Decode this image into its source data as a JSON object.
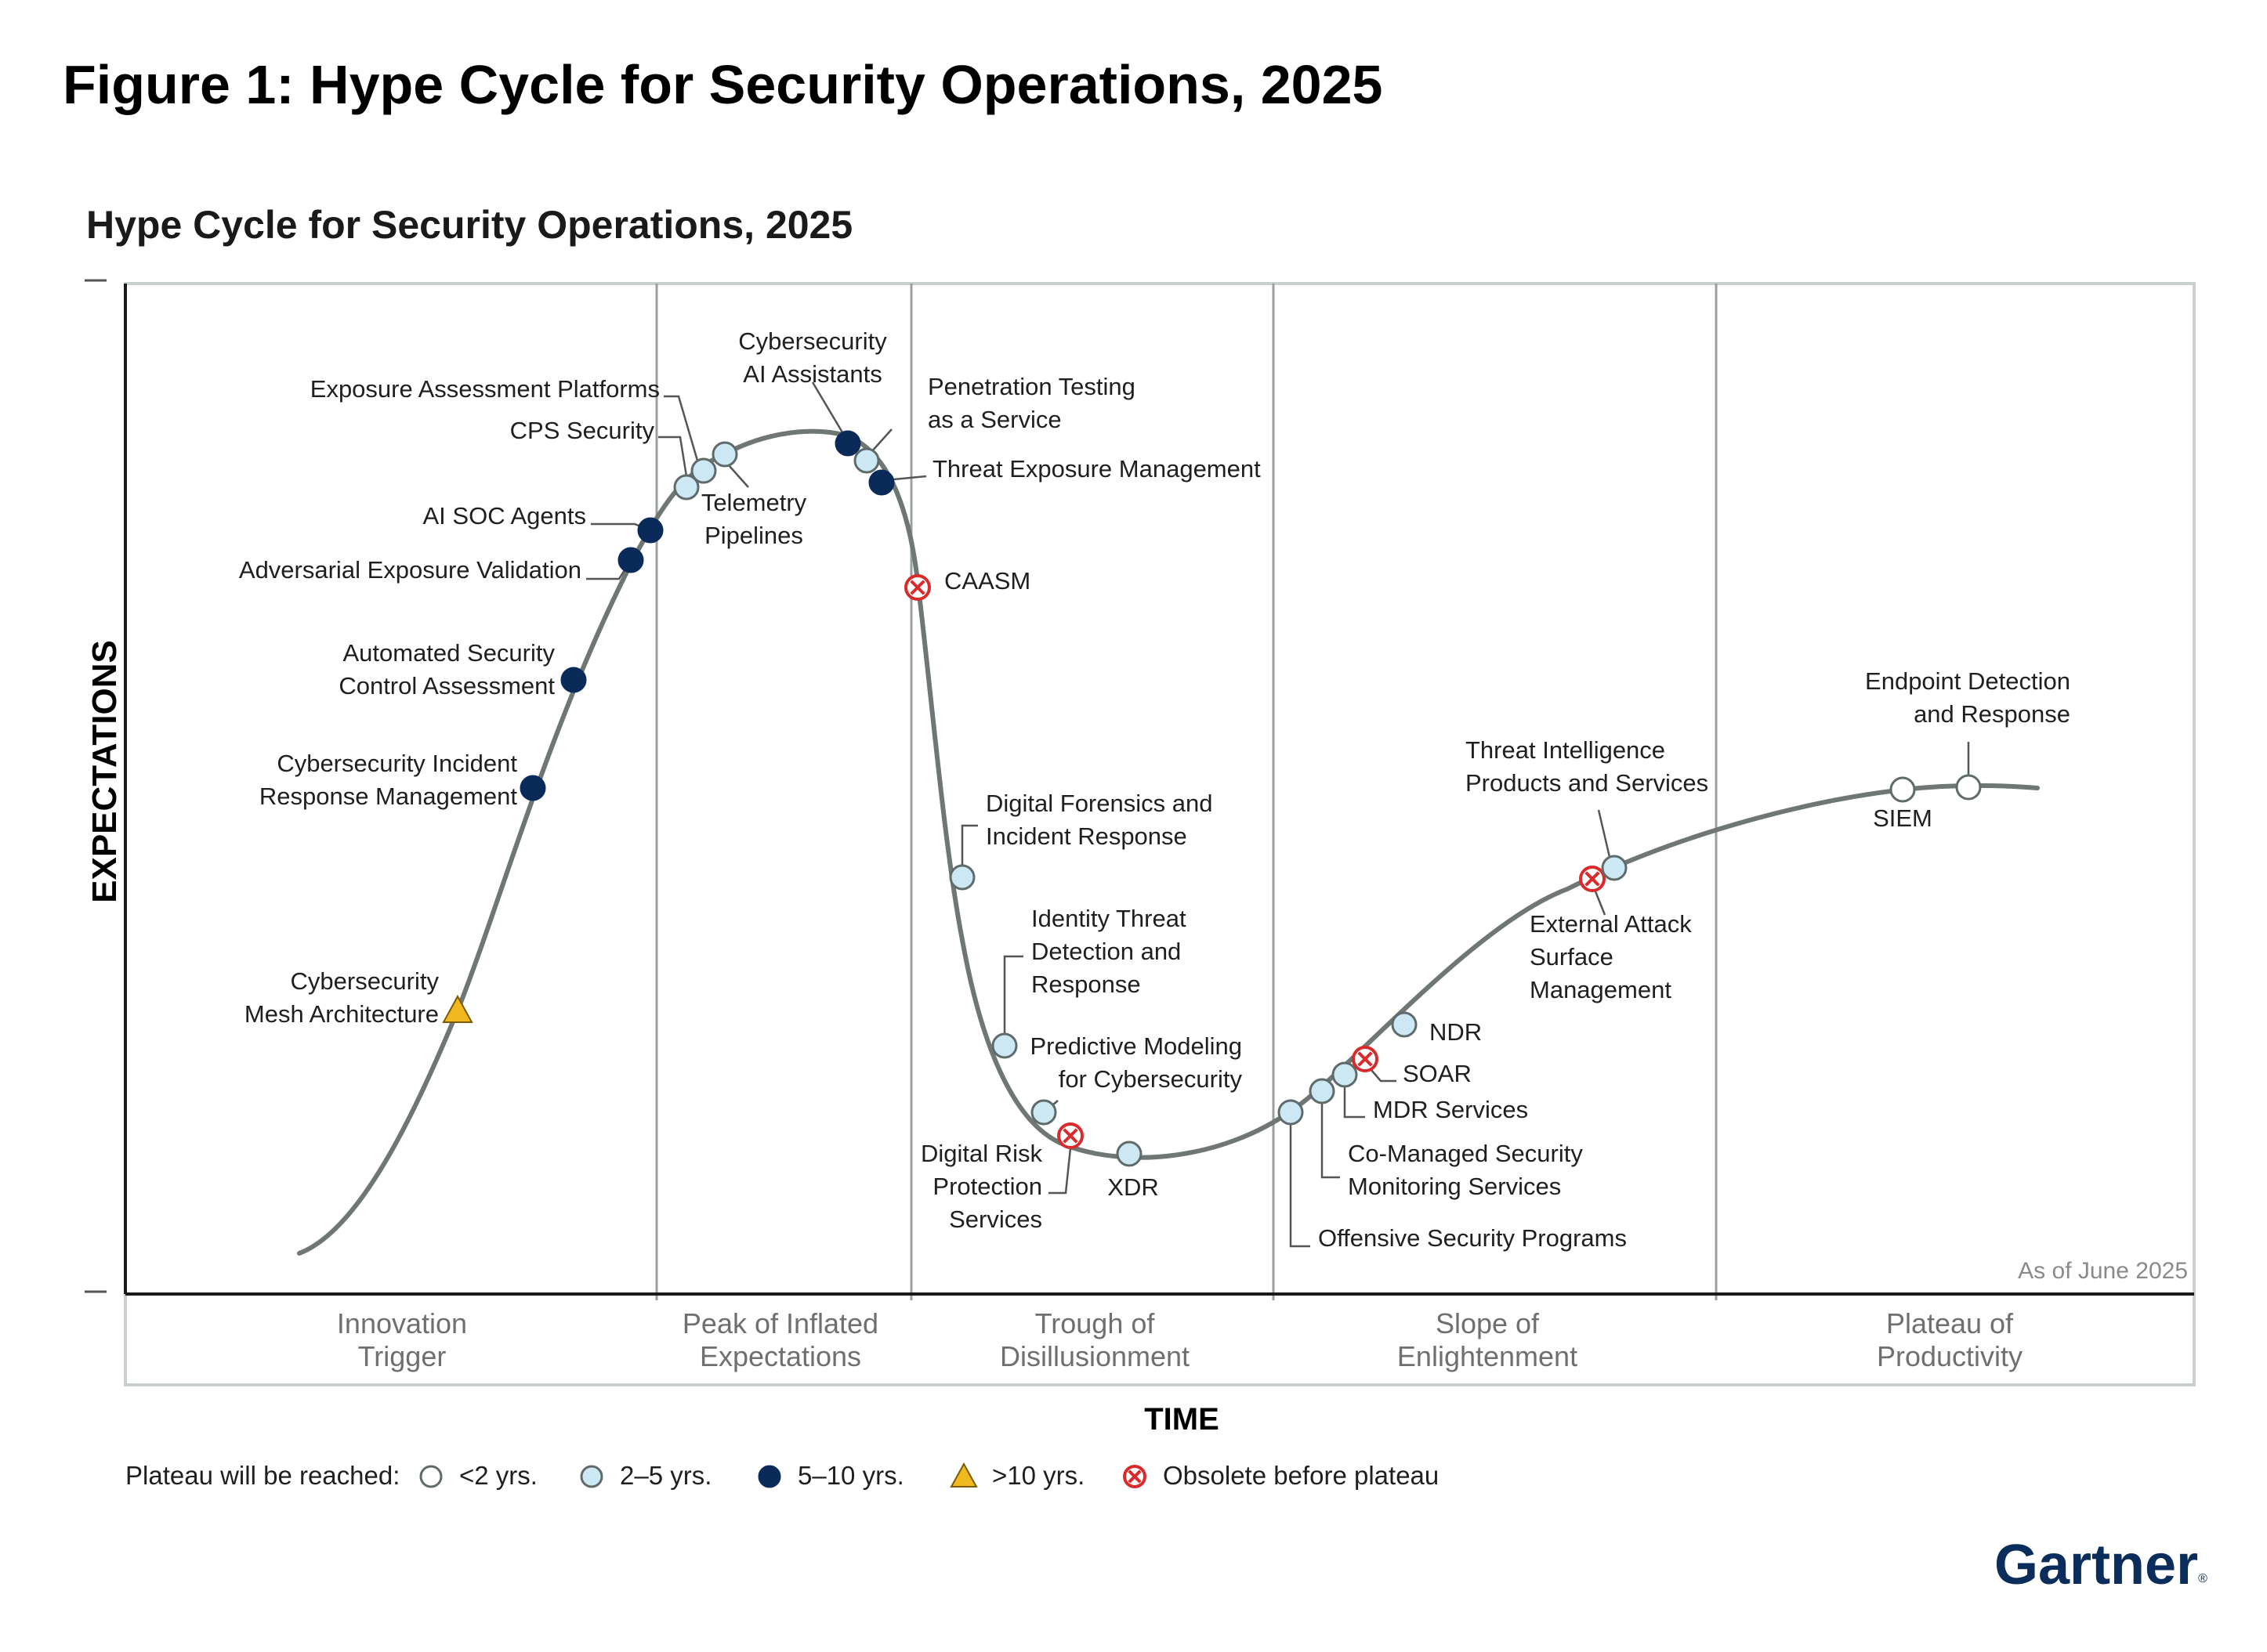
{
  "figure_title": "Figure 1: Hype Cycle for Security Operations, 2025",
  "chart_title": "Hype Cycle for Security Operations, 2025",
  "y_axis_label": "EXPECTATIONS",
  "x_axis_label": "TIME",
  "as_of": "As of June 2025",
  "brand": "Gartner",
  "brand_mark": "®",
  "phases": [
    {
      "lines": [
        "Innovation",
        "Trigger"
      ]
    },
    {
      "lines": [
        "Peak of Inflated",
        "Expectations"
      ]
    },
    {
      "lines": [
        "Trough of",
        "Disillusionment"
      ]
    },
    {
      "lines": [
        "Slope of",
        "Enlightenment"
      ]
    },
    {
      "lines": [
        "Plateau of",
        "Productivity"
      ]
    }
  ],
  "legend": {
    "title": "Plateau will be reached:",
    "items": [
      {
        "type": "lt2",
        "label": "<2 yrs."
      },
      {
        "type": "2to5",
        "label": "2–5 yrs."
      },
      {
        "type": "5to10",
        "label": "5–10 yrs."
      },
      {
        "type": "gt10",
        "label": ">10 yrs."
      },
      {
        "type": "obsolete",
        "label": "Obsolete before plateau"
      }
    ]
  },
  "colors": {
    "lt2": "#ffffff",
    "2to5": "#cde8f5",
    "5to10": "#0a2a5a",
    "gt10": "#f2b820",
    "obsolete": "#d92b2b",
    "curve": "#6f7775",
    "frame": "#c9cfcf",
    "brand": "#0a2d5c"
  },
  "chart_data": {
    "type": "hype-cycle",
    "title": "Hype Cycle for Security Operations, 2025",
    "x_label": "TIME",
    "y_label": "EXPECTATIONS",
    "technologies": [
      {
        "name": "Cybersecurity Mesh Architecture",
        "label_lines": [
          "Cybersecurity",
          "Mesh Architecture"
        ],
        "phase": "Innovation Trigger",
        "plateau": "gt10"
      },
      {
        "name": "Cybersecurity Incident Response Management",
        "label_lines": [
          "Cybersecurity Incident",
          "Response Management"
        ],
        "phase": "Innovation Trigger",
        "plateau": "5to10"
      },
      {
        "name": "Automated Security Control Assessment",
        "label_lines": [
          "Automated Security",
          "Control Assessment"
        ],
        "phase": "Innovation Trigger",
        "plateau": "5to10"
      },
      {
        "name": "Adversarial Exposure Validation",
        "label_lines": [
          "Adversarial Exposure Validation"
        ],
        "phase": "Innovation Trigger",
        "plateau": "5to10"
      },
      {
        "name": "AI SOC Agents",
        "label_lines": [
          "AI SOC Agents"
        ],
        "phase": "Innovation Trigger",
        "plateau": "5to10"
      },
      {
        "name": "CPS Security",
        "label_lines": [
          "CPS Security"
        ],
        "phase": "Peak of Inflated Expectations",
        "plateau": "2to5"
      },
      {
        "name": "Exposure Assessment Platforms",
        "label_lines": [
          "Exposure Assessment Platforms"
        ],
        "phase": "Peak of Inflated Expectations",
        "plateau": "2to5"
      },
      {
        "name": "Telemetry Pipelines",
        "label_lines": [
          "Telemetry",
          "Pipelines"
        ],
        "phase": "Peak of Inflated Expectations",
        "plateau": "2to5"
      },
      {
        "name": "Cybersecurity AI Assistants",
        "label_lines": [
          "Cybersecurity",
          "AI Assistants"
        ],
        "phase": "Peak of Inflated Expectations",
        "plateau": "5to10"
      },
      {
        "name": "Penetration Testing as a Service",
        "label_lines": [
          "Penetration Testing",
          "as a Service"
        ],
        "phase": "Peak of Inflated Expectations",
        "plateau": "2to5"
      },
      {
        "name": "Threat Exposure Management",
        "label_lines": [
          "Threat Exposure Management"
        ],
        "phase": "Peak of Inflated Expectations",
        "plateau": "5to10"
      },
      {
        "name": "CAASM",
        "label_lines": [
          "CAASM"
        ],
        "phase": "Trough of Disillusionment",
        "plateau": "obsolete"
      },
      {
        "name": "Digital Forensics and Incident Response",
        "label_lines": [
          "Digital Forensics and",
          "Incident Response"
        ],
        "phase": "Trough of Disillusionment",
        "plateau": "2to5"
      },
      {
        "name": "Identity Threat Detection and Response",
        "label_lines": [
          "Identity Threat",
          "Detection and",
          "Response"
        ],
        "phase": "Trough of Disillusionment",
        "plateau": "2to5"
      },
      {
        "name": "Predictive Modeling for Cybersecurity",
        "label_lines": [
          "Predictive Modeling",
          "for Cybersecurity"
        ],
        "phase": "Trough of Disillusionment",
        "plateau": "2to5"
      },
      {
        "name": "Digital Risk Protection Services",
        "label_lines": [
          "Digital Risk",
          "Protection",
          "Services"
        ],
        "phase": "Trough of Disillusionment",
        "plateau": "obsolete"
      },
      {
        "name": "XDR",
        "label_lines": [
          "XDR"
        ],
        "phase": "Trough of Disillusionment",
        "plateau": "2to5"
      },
      {
        "name": "Offensive Security Programs",
        "label_lines": [
          "Offensive Security Programs"
        ],
        "phase": "Slope of Enlightenment",
        "plateau": "2to5"
      },
      {
        "name": "Co-Managed Security Monitoring Services",
        "label_lines": [
          "Co-Managed Security",
          "Monitoring Services"
        ],
        "phase": "Slope of Enlightenment",
        "plateau": "2to5"
      },
      {
        "name": "MDR Services",
        "label_lines": [
          "MDR Services"
        ],
        "phase": "Slope of Enlightenment",
        "plateau": "2to5"
      },
      {
        "name": "SOAR",
        "label_lines": [
          "SOAR"
        ],
        "phase": "Slope of Enlightenment",
        "plateau": "obsolete"
      },
      {
        "name": "NDR",
        "label_lines": [
          "NDR"
        ],
        "phase": "Slope of Enlightenment",
        "plateau": "2to5"
      },
      {
        "name": "External Attack Surface Management",
        "label_lines": [
          "External Attack",
          "Surface",
          "Management"
        ],
        "phase": "Slope of Enlightenment",
        "plateau": "obsolete"
      },
      {
        "name": "Threat Intelligence Products and Services",
        "label_lines": [
          "Threat Intelligence",
          "Products and Services"
        ],
        "phase": "Slope of Enlightenment",
        "plateau": "2to5"
      },
      {
        "name": "SIEM",
        "label_lines": [
          "SIEM"
        ],
        "phase": "Plateau of Productivity",
        "plateau": "lt2"
      },
      {
        "name": "Endpoint Detection and Response",
        "label_lines": [
          "Endpoint Detection",
          "and Response"
        ],
        "phase": "Plateau of Productivity",
        "plateau": "lt2"
      }
    ]
  }
}
